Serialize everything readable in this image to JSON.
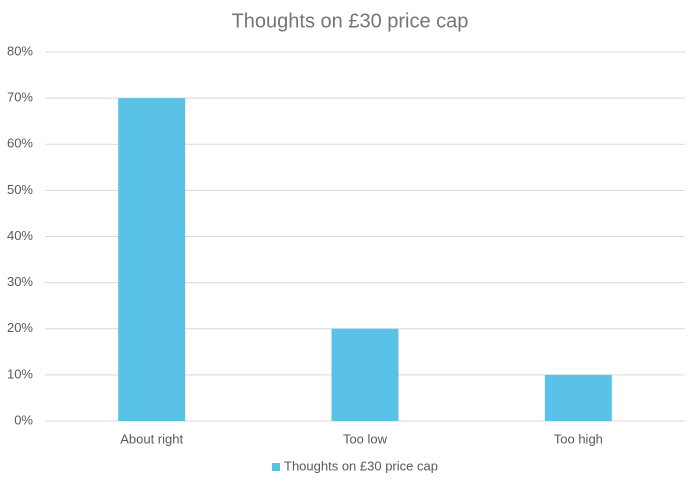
{
  "chart_data": {
    "type": "bar",
    "title": "Thoughts on £30 price cap",
    "categories": [
      "About right",
      "Too low",
      "Too high"
    ],
    "series": [
      {
        "name": "Thoughts on £30 price cap",
        "color": "#5bc2e7",
        "values": [
          70,
          20,
          10
        ]
      }
    ],
    "ylim": [
      0,
      80
    ],
    "yticks": [
      {
        "value": 0,
        "label": "0%"
      },
      {
        "value": 10,
        "label": "10%"
      },
      {
        "value": 20,
        "label": "20%"
      },
      {
        "value": 30,
        "label": "30%"
      },
      {
        "value": 40,
        "label": "40%"
      },
      {
        "value": 50,
        "label": "50%"
      },
      {
        "value": 60,
        "label": "60%"
      },
      {
        "value": 70,
        "label": "70%"
      },
      {
        "value": 80,
        "label": "80%"
      }
    ],
    "grid": true,
    "legend": "bottom"
  }
}
